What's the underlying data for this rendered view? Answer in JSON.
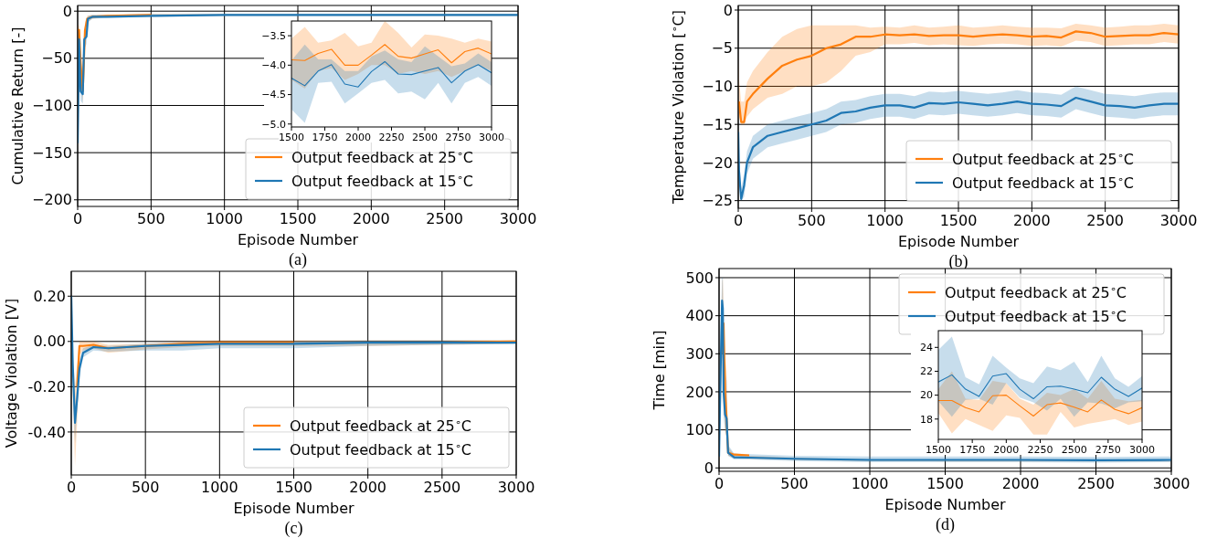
{
  "chart_data": [
    {
      "type": "line",
      "title": "(a)",
      "xlabel": "Episode Number",
      "ylabel": "Cumulative Return [-]",
      "xlim": [
        0,
        3000
      ],
      "ylim": [
        -207,
        6
      ],
      "xticks": [
        0,
        500,
        1000,
        1500,
        2000,
        2500,
        3000
      ],
      "yticks": [
        0,
        {
          "value": -50,
          "label": "−50"
        },
        {
          "value": -100,
          "label": "−100"
        },
        {
          "value": -150,
          "label": "−150"
        },
        {
          "value": -200,
          "label": "−200"
        }
      ],
      "grid": true,
      "legend": "bottom right",
      "series": [
        {
          "name": "Output feedback at 25$^{∘}$C",
          "color": "#ff7f0e",
          "x": [
            0,
            10,
            20,
            35,
            50,
            65,
            100,
            200,
            500,
            1000,
            1500,
            2000,
            2500,
            3000
          ],
          "values": [
            -20,
            -20,
            -55,
            -85,
            -20,
            -8,
            -6,
            -5,
            -4,
            null,
            null,
            null,
            null,
            null
          ],
          "lower": [
            -25,
            -30,
            -70,
            -98,
            -35,
            -12,
            -8,
            -6,
            -5,
            -5,
            -5,
            -5,
            -5,
            -5
          ],
          "upper": [
            -15,
            -15,
            -40,
            -70,
            -12,
            -5,
            -4,
            -4,
            -3,
            -3,
            -3,
            -3,
            -3,
            -3
          ]
        },
        {
          "name": "Output feedback at 15$^{∘}$C",
          "color": "#1f77b4",
          "x": [
            0,
            10,
            20,
            35,
            45,
            60,
            70,
            100,
            200,
            500,
            1000,
            1500,
            2000,
            2500,
            3000
          ],
          "values": [
            -140,
            -30,
            -85,
            -88,
            -30,
            -27,
            -8,
            -6,
            -6,
            -5,
            -4,
            -4,
            -4,
            -4,
            -4
          ],
          "lower": [
            -145,
            -40,
            -95,
            -98,
            -40,
            -35,
            -12,
            -8,
            -7,
            -6,
            -5,
            -5,
            -5,
            -5,
            -5
          ],
          "upper": [
            -135,
            -22,
            -70,
            -75,
            -22,
            -20,
            -5,
            -4,
            -4,
            -3,
            -3,
            -3,
            -3,
            -3,
            -3
          ]
        }
      ]
    },
    {
      "type": "line",
      "xlim": [
        1500,
        3000
      ],
      "ylim": [
        -5.05,
        -3.25
      ],
      "xticks": [
        1500,
        1750,
        2000,
        2250,
        2500,
        2750,
        3000
      ],
      "yticks": [
        {
          "value": -3.5,
          "label": "−3.5"
        },
        {
          "value": -4,
          "label": "−4.0"
        },
        {
          "value": -4.5,
          "label": "−4.5"
        },
        {
          "value": -5,
          "label": "−5.0"
        }
      ],
      "series": [
        {
          "color": "#ff7f0e",
          "x": [
            1500,
            1600,
            1700,
            1800,
            1900,
            2000,
            2100,
            2200,
            2300,
            2400,
            2500,
            2600,
            2700,
            2800,
            2900,
            3000
          ],
          "values": [
            -3.91,
            -3.92,
            -3.8,
            -3.73,
            -4,
            -4,
            -3.83,
            -3.65,
            -3.85,
            -3.88,
            -3.81,
            -3.74,
            -3.96,
            -3.77,
            -3.71,
            -3.81
          ],
          "lower": [
            -4.25,
            -4.4,
            -4.1,
            -4.05,
            -4.25,
            -4.15,
            -4,
            -4,
            -4.15,
            -4.1,
            -4.15,
            -4.1,
            -4.2,
            -4.1,
            -4,
            -4.1
          ],
          "upper": [
            -3.55,
            -3.35,
            -3.62,
            -3.58,
            -3.45,
            -3.68,
            -3.62,
            -3.25,
            -3.45,
            -3.7,
            -3.48,
            -3.5,
            -3.55,
            -3.62,
            -3.55,
            -3.6
          ]
        },
        {
          "color": "#1f77b4",
          "x": [
            1500,
            1600,
            1700,
            1800,
            1900,
            2000,
            2100,
            2200,
            2300,
            2400,
            2500,
            2600,
            2700,
            2800,
            2900,
            3000
          ],
          "values": [
            -4.22,
            -4.35,
            -4.1,
            -3.99,
            -4.32,
            -4.37,
            -4.11,
            -3.94,
            -4.15,
            -4.16,
            -4.1,
            -4.04,
            -4.3,
            -4.1,
            -3.99,
            -4.13
          ],
          "lower": [
            -4.75,
            -4.98,
            -4.3,
            -4.28,
            -4.65,
            -4.48,
            -4.3,
            -4.25,
            -4.48,
            -4.45,
            -4.58,
            -4.3,
            -4.65,
            -4.3,
            -4.2,
            -4.35
          ],
          "upper": [
            -3.92,
            -3.65,
            -3.9,
            -3.9,
            -4.1,
            -4.1,
            -3.85,
            -3.75,
            -3.9,
            -3.95,
            -3.68,
            -3.85,
            -4.02,
            -3.97,
            -3.8,
            -3.95
          ]
        }
      ]
    },
    {
      "type": "line",
      "title": "(b)",
      "xlabel": "Episode Number",
      "ylabel": "Temperature Violation [$^{∘}$C]",
      "xlim": [
        0,
        3000
      ],
      "ylim": [
        -26,
        0.6
      ],
      "xticks": [
        0,
        500,
        1000,
        1500,
        2000,
        2500,
        3000
      ],
      "yticks": [
        0,
        {
          "value": -5,
          "label": "−5"
        },
        {
          "value": -10,
          "label": "−10"
        },
        {
          "value": -15,
          "label": "−15"
        },
        {
          "value": -20,
          "label": "−20"
        },
        {
          "value": -25,
          "label": "−25"
        }
      ],
      "grid": true,
      "legend": "bottom right",
      "series": [
        {
          "name": "Output feedback at 25$^{∘}$C",
          "color": "#ff7f0e",
          "x": [
            0,
            5,
            20,
            40,
            60,
            100,
            200,
            300,
            400,
            500,
            600,
            700,
            800,
            900,
            1000,
            1100,
            1200,
            1300,
            1400,
            1500,
            1600,
            1700,
            1800,
            1900,
            2000,
            2100,
            2200,
            2300,
            2400,
            2500,
            2600,
            2700,
            2800,
            2900,
            3000
          ],
          "values": [
            null,
            -12,
            -14.7,
            -14.7,
            -12,
            -11,
            -9,
            -7.3,
            -6.5,
            -6,
            -5,
            -4.5,
            -3.5,
            -3.5,
            -3.2,
            -3.3,
            -3.2,
            -3.4,
            -3.3,
            -3.3,
            -3.5,
            -3.3,
            -3.2,
            -3.3,
            -3.5,
            -3.4,
            -3.6,
            -2.8,
            -3,
            -3.5,
            -3.4,
            -3.3,
            -3.3,
            -3,
            -3.2
          ],
          "lower": [
            -8,
            -14,
            -15,
            -15,
            -14,
            -13,
            -11.5,
            -11,
            -10,
            -10,
            -9.5,
            -8,
            -6,
            -5.5,
            -4.5,
            -4.5,
            -4.3,
            -4.6,
            -4.5,
            -4.6,
            -4.7,
            -4.5,
            -4.4,
            -4.5,
            -4.7,
            -4.6,
            -4.8,
            -4,
            -4.2,
            -4.7,
            -4.6,
            -4.5,
            -4.5,
            -4.2,
            -4.4
          ],
          "upper": [
            -6,
            -9,
            -12,
            -12,
            -9.5,
            -8,
            -5.5,
            -3.5,
            -2.5,
            -2,
            -2,
            -2,
            -2,
            -2.3,
            -2.2,
            -2.3,
            -2,
            -2.3,
            -2.2,
            -2,
            -2.3,
            -2.2,
            -2,
            -2.2,
            -2.3,
            -2.3,
            -2.4,
            -1.8,
            -2,
            -2.3,
            -2.2,
            -2,
            -2,
            -1.8,
            -2
          ]
        },
        {
          "name": "Output feedback at 15$^{∘}$C",
          "color": "#1f77b4",
          "x": [
            0,
            5,
            20,
            40,
            60,
            100,
            200,
            300,
            400,
            500,
            600,
            700,
            800,
            900,
            1000,
            1100,
            1200,
            1300,
            1400,
            1500,
            1600,
            1700,
            1800,
            1900,
            2000,
            2100,
            2200,
            2300,
            2400,
            2500,
            2600,
            2700,
            2800,
            2900,
            3000
          ],
          "values": [
            -16,
            -21,
            -24.8,
            -23,
            -20,
            -18,
            -16.5,
            -16,
            -15.5,
            -15,
            -14.5,
            -13.5,
            -13.3,
            -12.8,
            -12.5,
            -12.5,
            -12.8,
            -12.2,
            -12.3,
            -12.1,
            -12.3,
            -12.5,
            -12.3,
            -12,
            -12.3,
            -12.4,
            -12.6,
            -11.5,
            -12,
            -12.5,
            -12.6,
            -12.8,
            -12.5,
            -12.3,
            -12.3
          ],
          "lower": [
            -17,
            -23,
            -25,
            -24.5,
            -21.5,
            -19.5,
            -18,
            -17.5,
            -17,
            -16.5,
            -16,
            -15,
            -14.8,
            -14.3,
            -14,
            -14,
            -14.3,
            -13.7,
            -13.8,
            -13.6,
            -13.8,
            -14,
            -13.8,
            -13.5,
            -13.8,
            -13.9,
            -14.1,
            -13,
            -13.5,
            -14,
            -14.1,
            -14.3,
            -14,
            -13.8,
            -13.8
          ],
          "upper": [
            -15,
            -19,
            -23.5,
            -21.5,
            -18.5,
            -16.5,
            -15,
            -14.5,
            -14,
            -13.5,
            -13,
            -12,
            -11.8,
            -11.3,
            -11,
            -11,
            -11.3,
            -10.7,
            -10.8,
            -10.6,
            -10.8,
            -11,
            -10.8,
            -10.5,
            -10.8,
            -10.9,
            -11.1,
            -10,
            -10.5,
            -11,
            -11.1,
            -11.3,
            -11,
            -10.8,
            -10.8
          ]
        }
      ]
    },
    {
      "type": "line",
      "title": "(c)",
      "xlabel": "Episode Number",
      "ylabel": "Voltage Violation [V]",
      "xlim": [
        0,
        3000
      ],
      "ylim": [
        -0.59,
        0.31
      ],
      "xticks": [
        0,
        500,
        1000,
        1500,
        2000,
        2500,
        3000
      ],
      "yticks": [
        {
          "value": 0.2,
          "label": "0.20"
        },
        {
          "value": 0,
          "label": "0.00"
        },
        {
          "value": -0.2,
          "label": "-0.20"
        },
        {
          "value": -0.4,
          "label": "-0.40"
        }
      ],
      "grid": true,
      "legend": "bottom right",
      "series": [
        {
          "name": "Output feedback at 25$^{∘}$C",
          "color": "#ff7f0e",
          "x": [
            0,
            10,
            25,
            40,
            55,
            80,
            150,
            250,
            500,
            750,
            1000,
            1500,
            2000,
            2500,
            3000
          ],
          "values": [
            null,
            null,
            null,
            -0.2,
            -0.02,
            -0.02,
            -0.015,
            -0.03,
            -0.02,
            -0.01,
            -0.005,
            -0.005,
            null,
            -0.005,
            0
          ],
          "lower": [
            0.19,
            -0.2,
            -0.55,
            -0.35,
            -0.06,
            -0.04,
            -0.03,
            -0.05,
            -0.035,
            -0.025,
            -0.02,
            -0.02,
            -0.02,
            -0.015,
            -0.01
          ],
          "upper": [
            0.21,
            -0.05,
            -0.2,
            -0.1,
            0,
            0,
            0,
            -0.015,
            -0.01,
            0,
            0.005,
            0.005,
            0.005,
            0.005,
            0.005
          ]
        },
        {
          "name": "Output feedback at 15$^{∘}$C",
          "color": "#1f77b4",
          "x": [
            0,
            10,
            25,
            40,
            55,
            80,
            150,
            250,
            500,
            750,
            1000,
            1500,
            2000,
            2500,
            3000
          ],
          "values": [
            0.2,
            -0.1,
            -0.36,
            -0.25,
            -0.12,
            -0.05,
            -0.025,
            -0.03,
            -0.02,
            -0.015,
            -0.01,
            -0.01,
            -0.005,
            -0.005,
            -0.005
          ],
          "lower": [
            0.19,
            -0.18,
            -0.45,
            -0.3,
            -0.16,
            -0.07,
            -0.04,
            -0.045,
            -0.04,
            -0.04,
            -0.03,
            -0.03,
            -0.02,
            -0.015,
            -0.01
          ],
          "upper": [
            0.21,
            -0.05,
            -0.28,
            -0.2,
            -0.08,
            -0.03,
            -0.015,
            -0.02,
            -0.01,
            -0.005,
            0,
            0,
            0.005,
            0.005,
            0.005
          ]
        }
      ]
    },
    {
      "type": "line",
      "title": "(d)",
      "xlabel": "Episode Number",
      "ylabel": "Time [min]",
      "xlim": [
        0,
        3000
      ],
      "ylim": [
        -9,
        524
      ],
      "xticks": [
        0,
        500,
        1000,
        1500,
        2000,
        2500,
        3000
      ],
      "yticks": [
        0,
        100,
        200,
        300,
        400,
        500
      ],
      "grid": true,
      "legend": "top right",
      "series": [
        {
          "name": "Output feedback at 25$^{∘}$C",
          "color": "#ff7f0e",
          "x": [
            0,
            10,
            20,
            25,
            30,
            40,
            50,
            60,
            100,
            200,
            500,
            1000,
            1500,
            2000,
            2500,
            3000
          ],
          "values": [
            null,
            null,
            null,
            300,
            380,
            200,
            130,
            40,
            35,
            33,
            null,
            null,
            null,
            null,
            null,
            null
          ],
          "lower": [
            25,
            120,
            280,
            300,
            200,
            100,
            80,
            32,
            25,
            24,
            21,
            18,
            17,
            17,
            17,
            17
          ],
          "upper": [
            35,
            300,
            490,
            500,
            420,
            300,
            250,
            55,
            35,
            32,
            27,
            22,
            21,
            21,
            21,
            21
          ]
        },
        {
          "name": "Output feedback at 15$^{∘}$C",
          "color": "#1f77b4",
          "x": [
            0,
            10,
            20,
            25,
            30,
            40,
            50,
            60,
            100,
            200,
            500,
            1000,
            1500,
            2000,
            2500,
            3000
          ],
          "values": [
            30,
            250,
            440,
            420,
            200,
            140,
            130,
            40,
            28,
            27,
            24,
            21,
            21,
            21,
            20,
            21
          ],
          "lower": [
            25,
            150,
            350,
            330,
            130,
            100,
            80,
            32,
            22,
            22,
            18,
            15,
            15,
            15,
            14,
            15
          ],
          "upper": [
            35,
            350,
            500,
            500,
            350,
            250,
            230,
            60,
            38,
            36,
            32,
            30,
            30,
            30,
            29,
            30
          ]
        }
      ]
    },
    {
      "type": "line",
      "xlim": [
        1500,
        3000
      ],
      "ylim": [
        16.3,
        25.4
      ],
      "xticks": [
        1500,
        1750,
        2000,
        2250,
        2500,
        2750,
        3000
      ],
      "yticks": [
        18,
        20,
        22,
        24
      ],
      "series": [
        {
          "color": "#ff7f0e",
          "x": [
            1500,
            1600,
            1700,
            1800,
            1900,
            2000,
            2100,
            2200,
            2300,
            2400,
            2500,
            2600,
            2700,
            2800,
            2900,
            3000
          ],
          "values": [
            19.55,
            19.55,
            18.95,
            18.6,
            19.95,
            20,
            19.1,
            18.25,
            19.2,
            19.35,
            19,
            18.6,
            19.6,
            18.8,
            18.45,
            18.95
          ],
          "lower": [
            18.5,
            16.8,
            18,
            17.5,
            17,
            18.3,
            18.1,
            16.7,
            16.7,
            18.6,
            17.3,
            17.6,
            17.8,
            18,
            17.5,
            17.8
          ],
          "upper": [
            20.5,
            22,
            19.7,
            19.6,
            21.2,
            21,
            19.7,
            19.2,
            20.2,
            20,
            20.5,
            19.7,
            21.2,
            19.7,
            19.5,
            19.6
          ]
        },
        {
          "color": "#1f77b4",
          "x": [
            1500,
            1600,
            1700,
            1800,
            1900,
            2000,
            2100,
            2200,
            2300,
            2400,
            2500,
            2600,
            2700,
            2800,
            2900,
            3000
          ],
          "values": [
            21.1,
            21.7,
            20.5,
            19.9,
            21.6,
            21.8,
            20.5,
            19.7,
            20.7,
            20.75,
            20.5,
            20.2,
            21.5,
            20.5,
            19.9,
            20.6
          ],
          "lower": [
            19.5,
            18.2,
            19.6,
            19.7,
            19.2,
            21,
            19.8,
            19.4,
            18.7,
            19.7,
            18.2,
            19.4,
            19.3,
            18.9,
            19.4,
            19.5
          ],
          "upper": [
            23.8,
            24.9,
            21.5,
            20.9,
            23.3,
            22.3,
            21.4,
            21,
            22.4,
            22.1,
            22.8,
            21.1,
            23.3,
            21.4,
            20.7,
            21.6
          ]
        }
      ]
    }
  ]
}
